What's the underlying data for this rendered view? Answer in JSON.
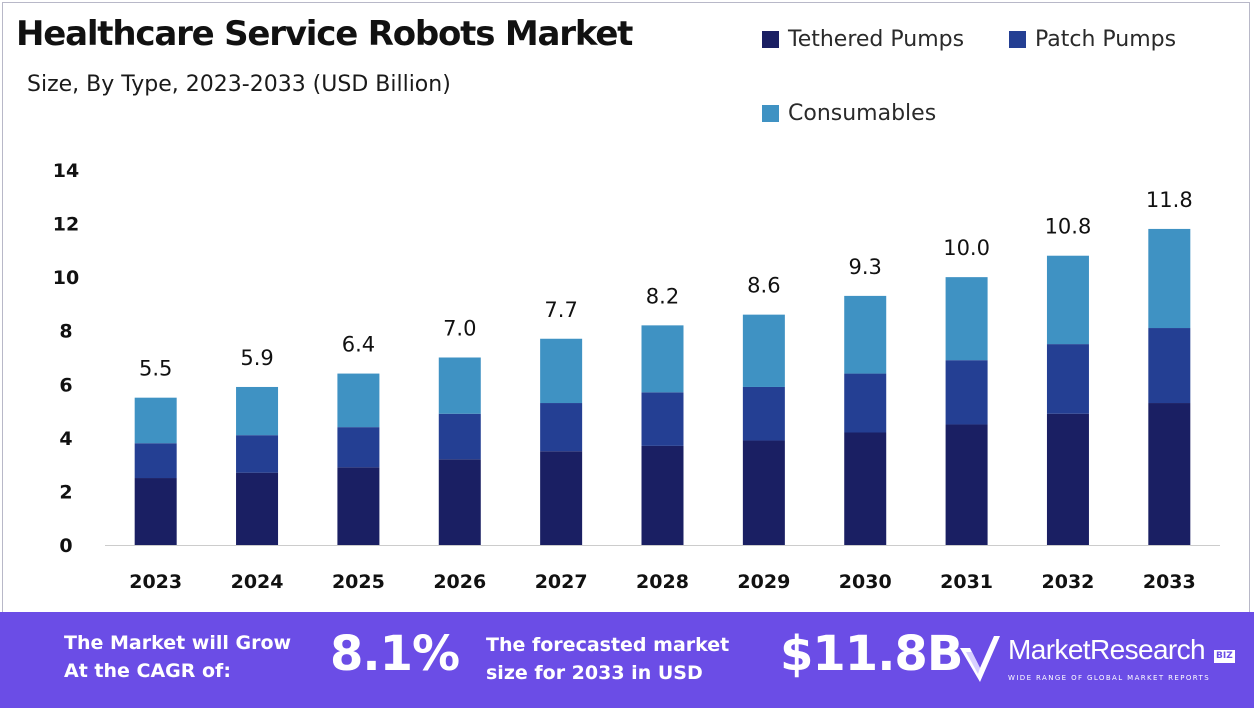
{
  "title": "Healthcare Service Robots Market",
  "subtitle": "Size, By Type, 2023-2033 (USD Billion)",
  "colors": {
    "tethered": "#1a1f63",
    "patch": "#243f93",
    "consumables": "#3f92c3",
    "footer": "#6b4de6",
    "axis": "#cccccc"
  },
  "legend": [
    {
      "label": "Tethered Pumps",
      "color": "#1a1f63"
    },
    {
      "label": "Patch Pumps",
      "color": "#243f93"
    },
    {
      "label": "Consumables",
      "color": "#3f92c3"
    }
  ],
  "chart_data": {
    "type": "bar",
    "stacked": true,
    "categories": [
      "2023",
      "2024",
      "2025",
      "2026",
      "2027",
      "2028",
      "2029",
      "2030",
      "2031",
      "2032",
      "2033"
    ],
    "series": [
      {
        "name": "Tethered Pumps",
        "values": [
          2.5,
          2.7,
          2.9,
          3.2,
          3.5,
          3.7,
          3.9,
          4.2,
          4.5,
          4.9,
          5.3
        ]
      },
      {
        "name": "Patch Pumps",
        "values": [
          1.3,
          1.4,
          1.5,
          1.7,
          1.8,
          2.0,
          2.0,
          2.2,
          2.4,
          2.6,
          2.8
        ]
      },
      {
        "name": "Consumables",
        "values": [
          1.7,
          1.8,
          2.0,
          2.1,
          2.4,
          2.5,
          2.7,
          2.9,
          3.1,
          3.3,
          3.7
        ]
      }
    ],
    "totals": [
      "5.5",
      "5.9",
      "6.4",
      "7.0",
      "7.7",
      "8.2",
      "8.6",
      "9.3",
      "10.0",
      "10.8",
      "11.8"
    ],
    "yticks": [
      "0",
      "2",
      "4",
      "6",
      "8",
      "10",
      "12",
      "14"
    ],
    "ylim": [
      0,
      14
    ],
    "grid": false,
    "legend_position": "top-right"
  },
  "footer": {
    "cagr_text": "The Market will Grow\nAt the CAGR of:",
    "cagr_value": "8.1%",
    "forecast_text": "The forecasted market\nsize for 2033 in USD",
    "forecast_value": "$11.8B",
    "brand_name": "MarketResearch",
    "brand_badge": "BIZ",
    "brand_tagline": "WIDE RANGE OF GLOBAL MARKET REPORTS"
  }
}
